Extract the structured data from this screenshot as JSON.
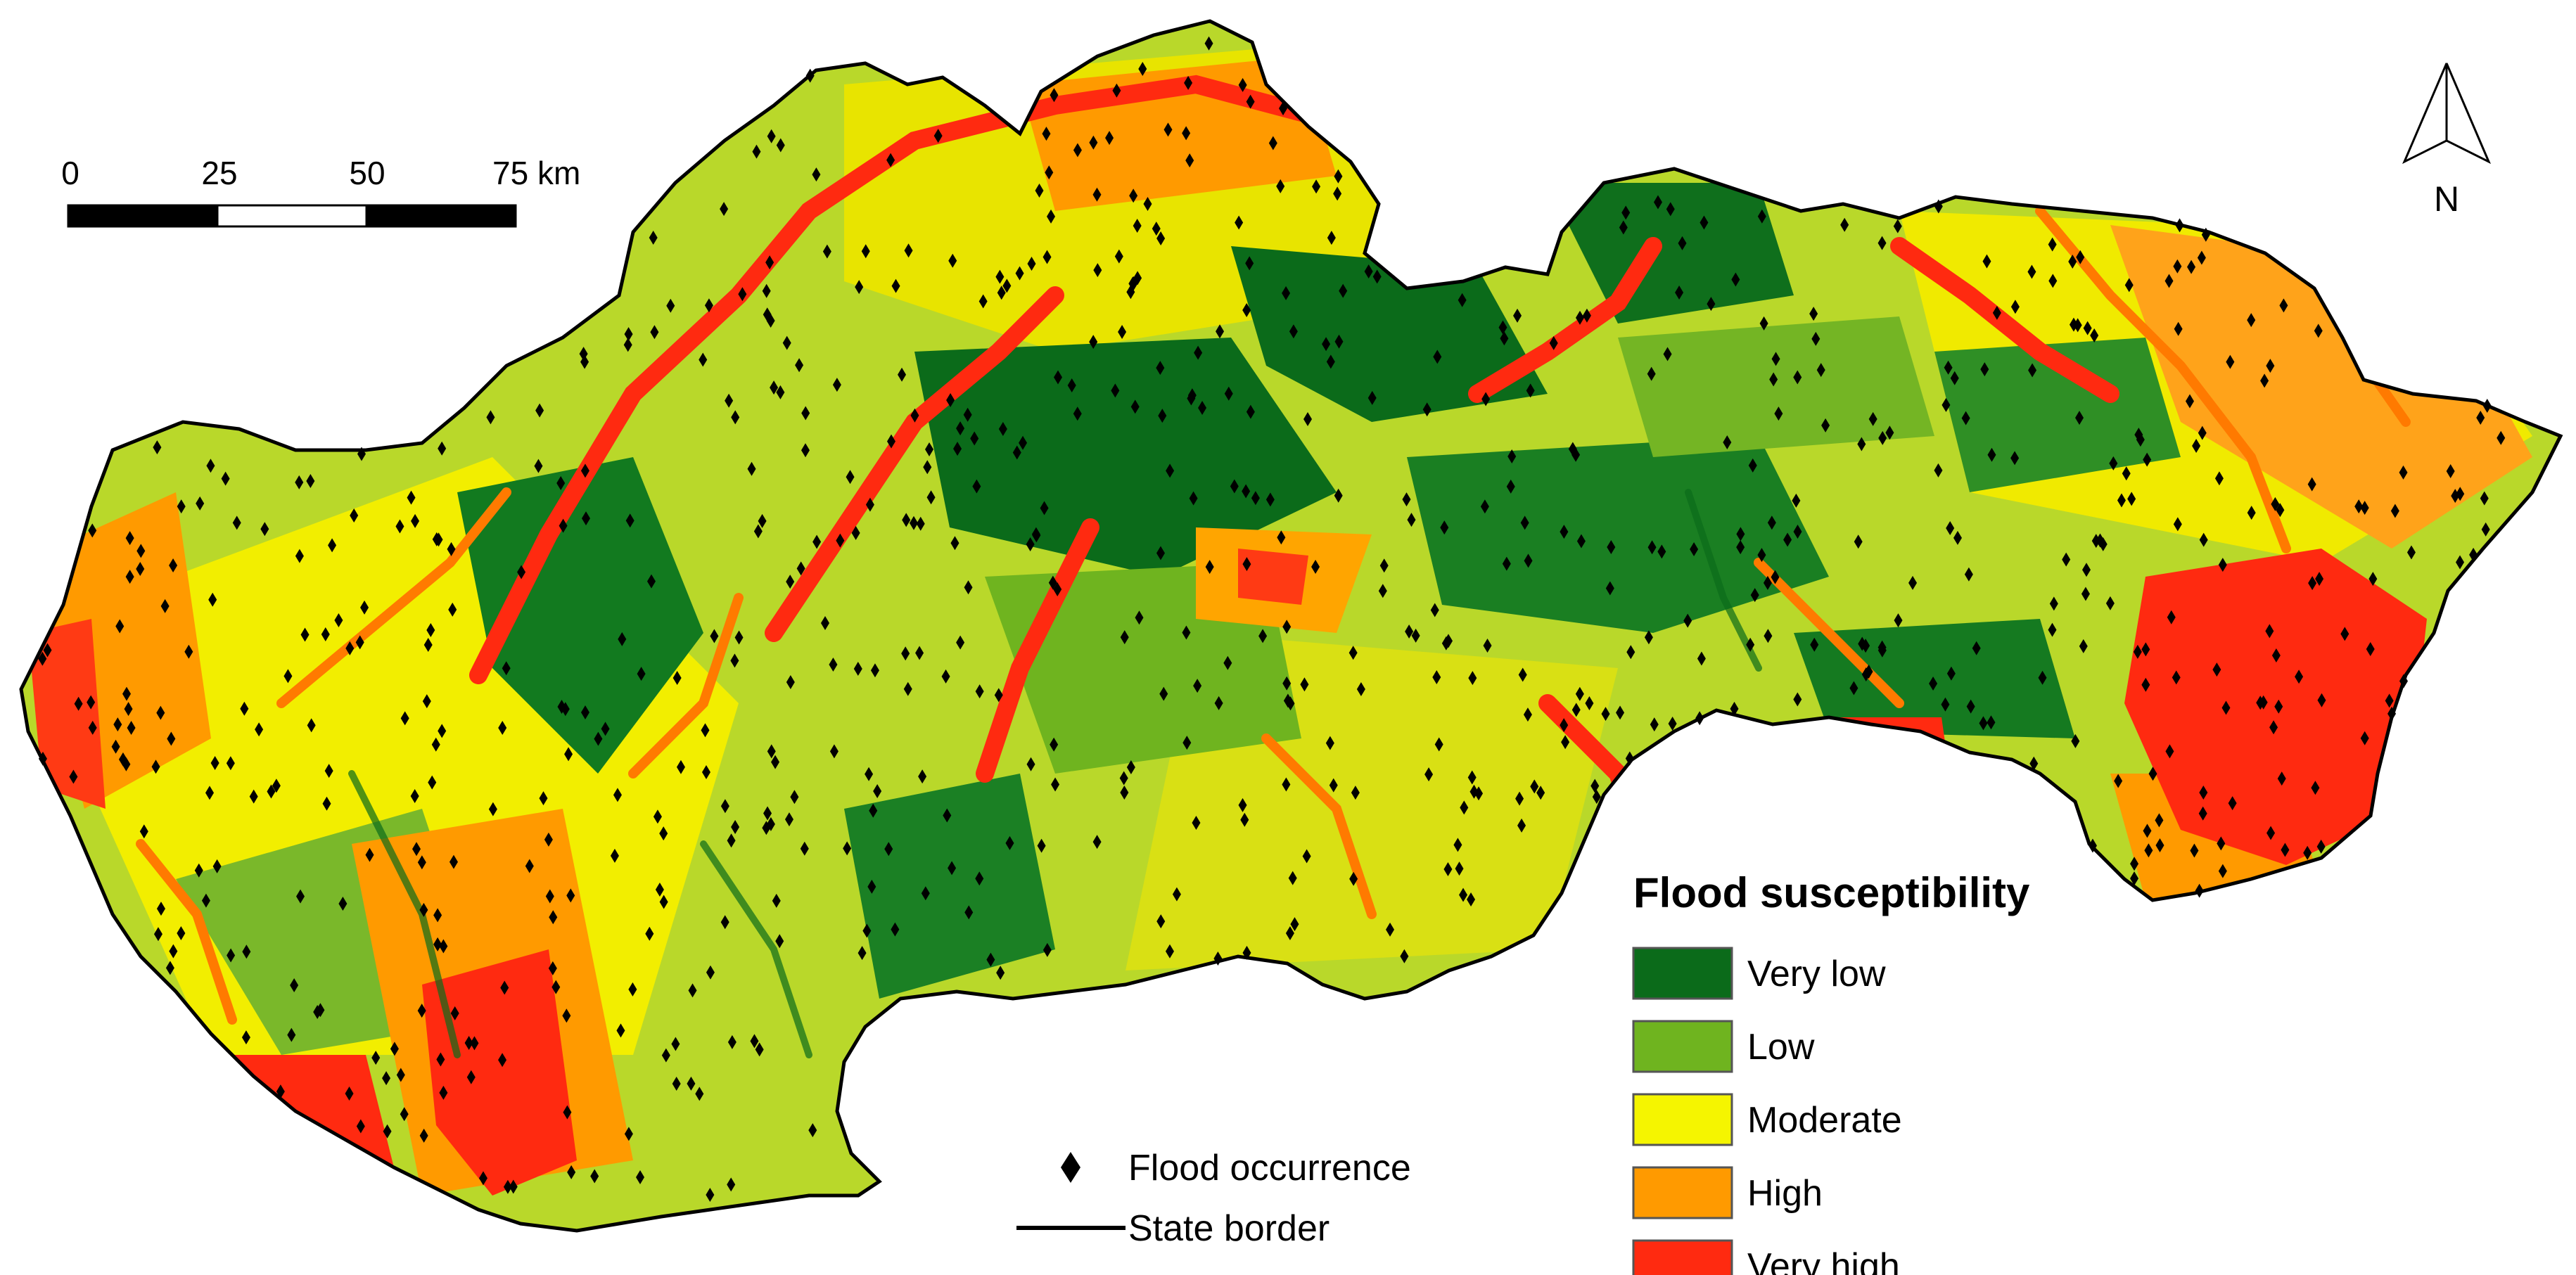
{
  "map": {
    "scale_bar": {
      "ticks": [
        "0",
        "25",
        "50",
        "75 km"
      ]
    },
    "north_arrow": {
      "label": "N",
      "icon": "north-arrow-icon"
    },
    "legend": {
      "title": "Flood susceptibility",
      "classes": [
        {
          "label": "Very low",
          "color": "#0b6b1a"
        },
        {
          "label": "Low",
          "color": "#6fb41f"
        },
        {
          "label": "Moderate",
          "color": "#f5f500"
        },
        {
          "label": "High",
          "color": "#ff9a00"
        },
        {
          "label": "Very high",
          "color": "#ff2a10"
        }
      ]
    },
    "symbols": [
      {
        "label": "Flood occurrence",
        "icon": "diamond-marker-icon"
      },
      {
        "label": "State border",
        "icon": "line-icon"
      }
    ]
  }
}
